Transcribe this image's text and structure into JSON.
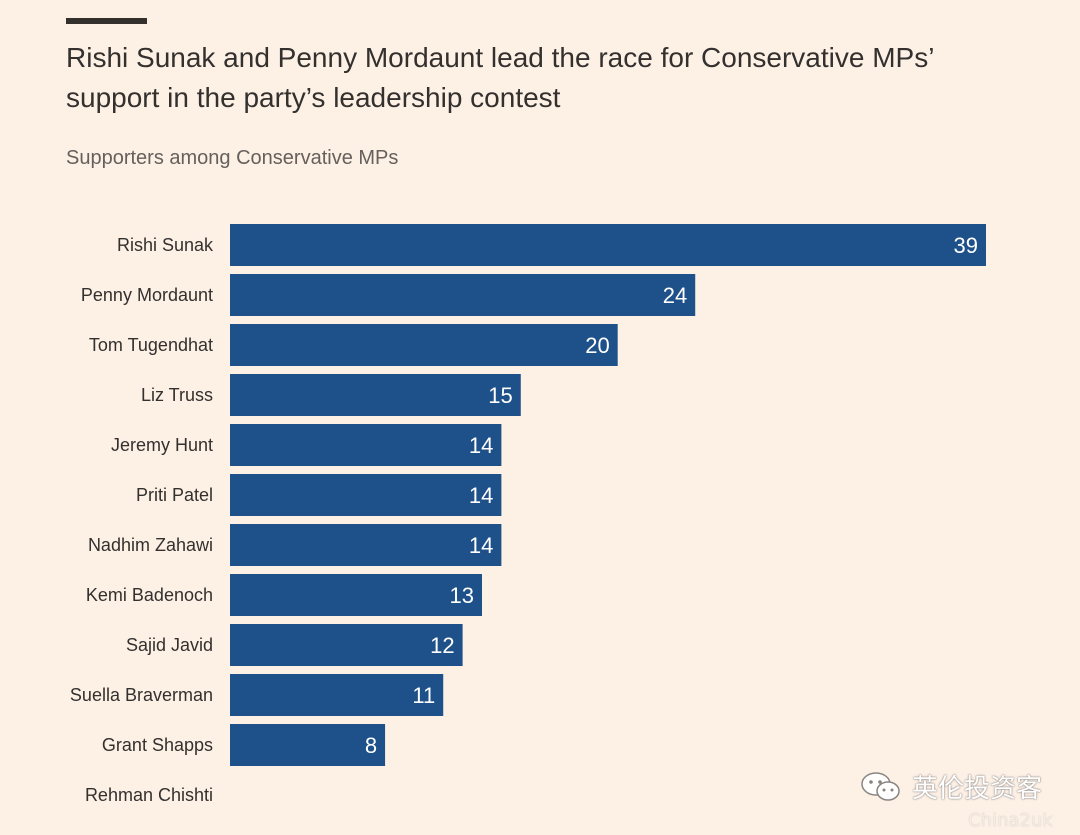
{
  "title": "Rishi Sunak and Penny Mordaunt lead the race for Conservative MPs’ support in the party’s leadership contest",
  "subtitle": "Supporters among Conservative MPs",
  "colors": {
    "background": "#fdf1e6",
    "bar": "#1e5189",
    "text": "#33302e"
  },
  "chart_data": {
    "type": "bar",
    "orientation": "horizontal",
    "title": "Rishi Sunak and Penny Mordaunt lead the race for Conservative MPs’ support in the party’s leadership contest",
    "subtitle": "Supporters among Conservative MPs",
    "categories": [
      "Rishi Sunak",
      "Penny Mordaunt",
      "Tom Tugendhat",
      "Liz Truss",
      "Jeremy Hunt",
      "Priti Patel",
      "Nadhim Zahawi",
      "Kemi Badenoch",
      "Sajid Javid",
      "Suella Braverman",
      "Grant Shapps",
      "Rehman Chishti"
    ],
    "values": [
      39,
      24,
      20,
      15,
      14,
      14,
      14,
      13,
      12,
      11,
      8,
      null
    ],
    "xlim": [
      0,
      39
    ],
    "grid": false,
    "legend": "none",
    "data_labels": "inside-end"
  },
  "watermark": {
    "text": "英伦投资客",
    "small_text": "China2uk"
  }
}
